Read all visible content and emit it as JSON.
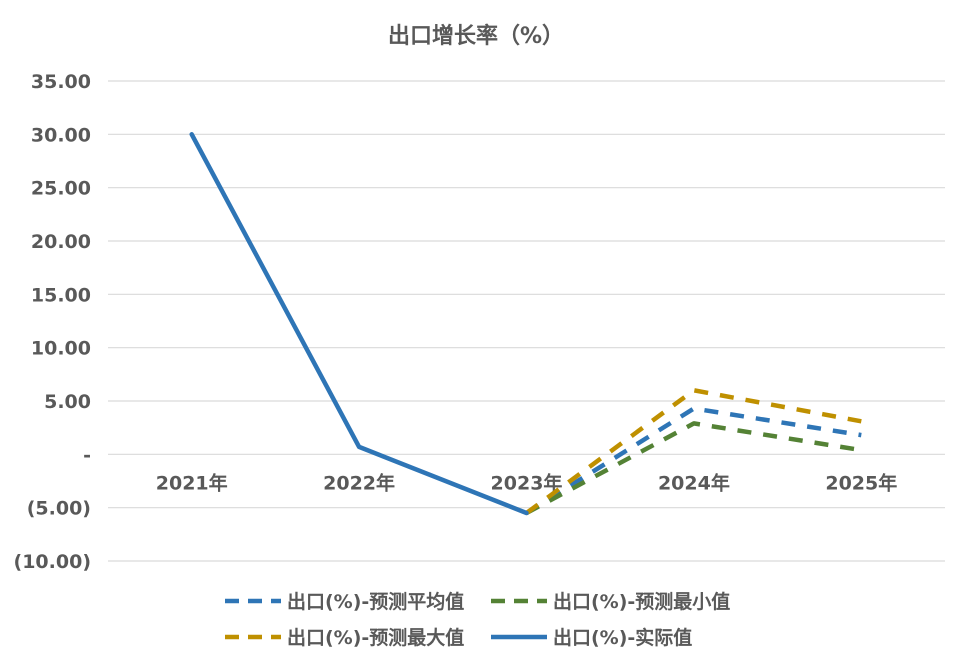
{
  "chart_data": {
    "type": "line",
    "title": "出口增长率（%）",
    "xlabel": "",
    "ylabel": "",
    "categories": [
      "2021年",
      "2022年",
      "2023年",
      "2024年",
      "2025年"
    ],
    "y_ticks": [
      35,
      30,
      25,
      20,
      15,
      10,
      5,
      0,
      -5,
      -10
    ],
    "y_tick_labels": [
      "35.00",
      "30.00",
      "25.00",
      "20.00",
      "15.00",
      "10.00",
      "5.00",
      "-",
      "(5.00)",
      "(10.00)"
    ],
    "ylim": [
      -10,
      35
    ],
    "grid": true,
    "legend_position": "bottom",
    "series": [
      {
        "name": "出口(%)-预测平均值",
        "values": [
          null,
          null,
          -5.5,
          4.3,
          1.8
        ],
        "color": "#2e75b6",
        "dashed": true
      },
      {
        "name": "出口(%)-预测最小值",
        "values": [
          null,
          null,
          -5.5,
          2.9,
          0.4
        ],
        "color": "#548235",
        "dashed": true
      },
      {
        "name": "出口(%)-预测最大值",
        "values": [
          null,
          null,
          -5.5,
          6.0,
          3.1
        ],
        "color": "#bf9000",
        "dashed": true
      },
      {
        "name": "出口(%)-实际值",
        "values": [
          30.0,
          0.7,
          -5.5,
          null,
          null
        ],
        "color": "#2e75b6",
        "dashed": false
      }
    ]
  }
}
